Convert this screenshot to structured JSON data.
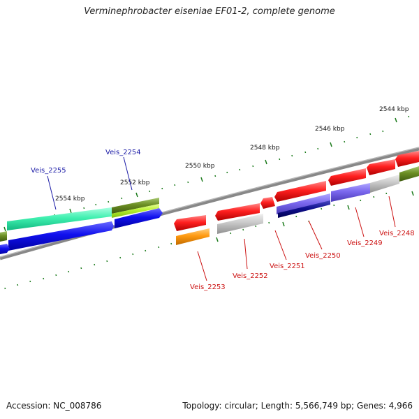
{
  "title": "Verminephrobacter eiseniae EF01-2, complete genome",
  "footer": {
    "accession": "Accession: NC_008786",
    "topology": "Topology: circular; Length: 5,566,749 bp; Genes: 4,966"
  },
  "colors": {
    "backbone": "#888888",
    "tick": "#1a7a1a",
    "label_forward": "#1a1aa6",
    "label_reverse": "#cc1111"
  },
  "scale_labels": [
    "2544 kbp",
    "2546 kbp",
    "2548 kbp",
    "2550 kbp",
    "2552 kbp",
    "2554 kbp"
  ],
  "gene_labels": [
    "Veis_2254",
    "Veis_2255",
    "Veis_2253",
    "Veis_2252",
    "Veis_2251",
    "Veis_2250",
    "Veis_2249",
    "Veis_2248"
  ]
}
